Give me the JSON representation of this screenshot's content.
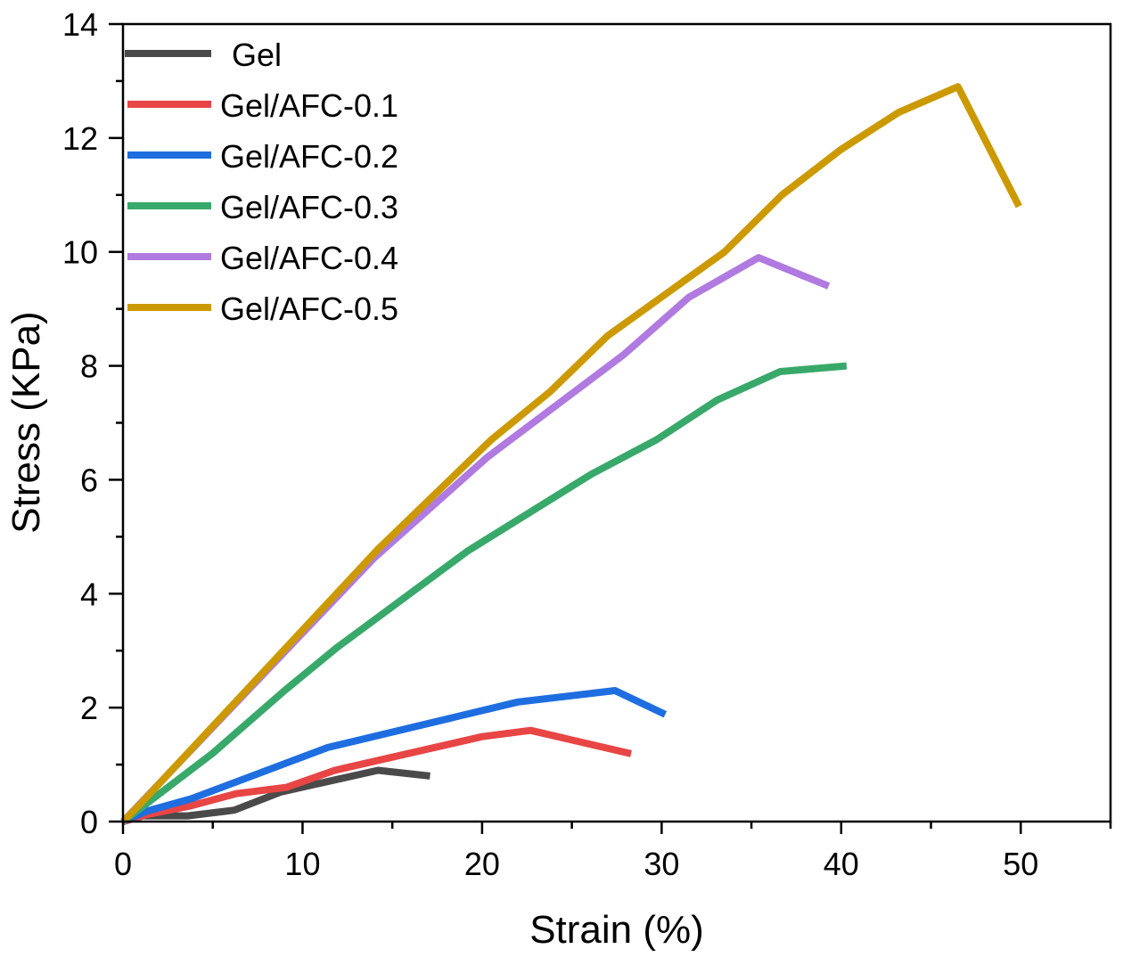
{
  "chart_data": {
    "type": "line",
    "title": "",
    "xlabel": "Strain (%)",
    "ylabel": "Stress (KPa)",
    "xlim": [
      0,
      55
    ],
    "ylim": [
      0,
      14
    ],
    "xticks": [
      0,
      10,
      20,
      30,
      40,
      50
    ],
    "yticks": [
      0,
      2,
      4,
      6,
      8,
      10,
      12,
      14
    ],
    "xtick_labels": [
      "0",
      "10",
      "20",
      "30",
      "40",
      "50"
    ],
    "ytick_labels": [
      "0",
      "2",
      "4",
      "6",
      "8",
      "10",
      "12",
      "14"
    ],
    "x_minor_step": 5,
    "y_minor_step": 1,
    "grid": false,
    "legend_position": "top-left",
    "series": [
      {
        "name": "Gel",
        "color": "#4a4a4a",
        "x": [
          0,
          1.1,
          3.6,
          6.2,
          8.8,
          14.2,
          17.1
        ],
        "y": [
          0,
          0.1,
          0.1,
          0.2,
          0.52,
          0.9,
          0.8
        ]
      },
      {
        "name": "Gel/AFC-0.1",
        "color": "#e84545",
        "x": [
          0,
          1.3,
          3.7,
          6.3,
          9.1,
          11.8,
          20.0,
          22.7,
          28.3
        ],
        "y": [
          0,
          0.12,
          0.27,
          0.49,
          0.6,
          0.9,
          1.49,
          1.6,
          1.19
        ]
      },
      {
        "name": "Gel/AFC-0.2",
        "color": "#1e6ee0",
        "x": [
          0,
          1.3,
          3.8,
          11.4,
          22.0,
          27.4,
          30.2
        ],
        "y": [
          0,
          0.18,
          0.4,
          1.3,
          2.1,
          2.3,
          1.88
        ]
      },
      {
        "name": "Gel/AFC-0.3",
        "color": "#38a96a",
        "x": [
          0,
          5.0,
          9.0,
          11.9,
          19.2,
          26.1,
          29.7,
          33.1,
          36.6,
          40.3
        ],
        "y": [
          0,
          1.2,
          2.3,
          3.05,
          4.75,
          6.1,
          6.7,
          7.4,
          7.9,
          8.0
        ]
      },
      {
        "name": "Gel/AFC-0.4",
        "color": "#b07ae0",
        "x": [
          0,
          14.0,
          20.3,
          27.9,
          31.5,
          35.4,
          39.3
        ],
        "y": [
          0,
          4.63,
          6.4,
          8.2,
          9.2,
          9.9,
          9.4
        ]
      },
      {
        "name": "Gel/AFC-0.5",
        "color": "#cc9a00",
        "x": [
          0,
          1.0,
          14.2,
          20.5,
          23.8,
          27.0,
          33.5,
          36.7,
          40.0,
          43.2,
          46.5,
          49.9
        ],
        "y": [
          0,
          0.32,
          4.78,
          6.7,
          7.55,
          8.53,
          10.0,
          11.0,
          11.8,
          12.45,
          12.9,
          10.8
        ]
      }
    ]
  }
}
